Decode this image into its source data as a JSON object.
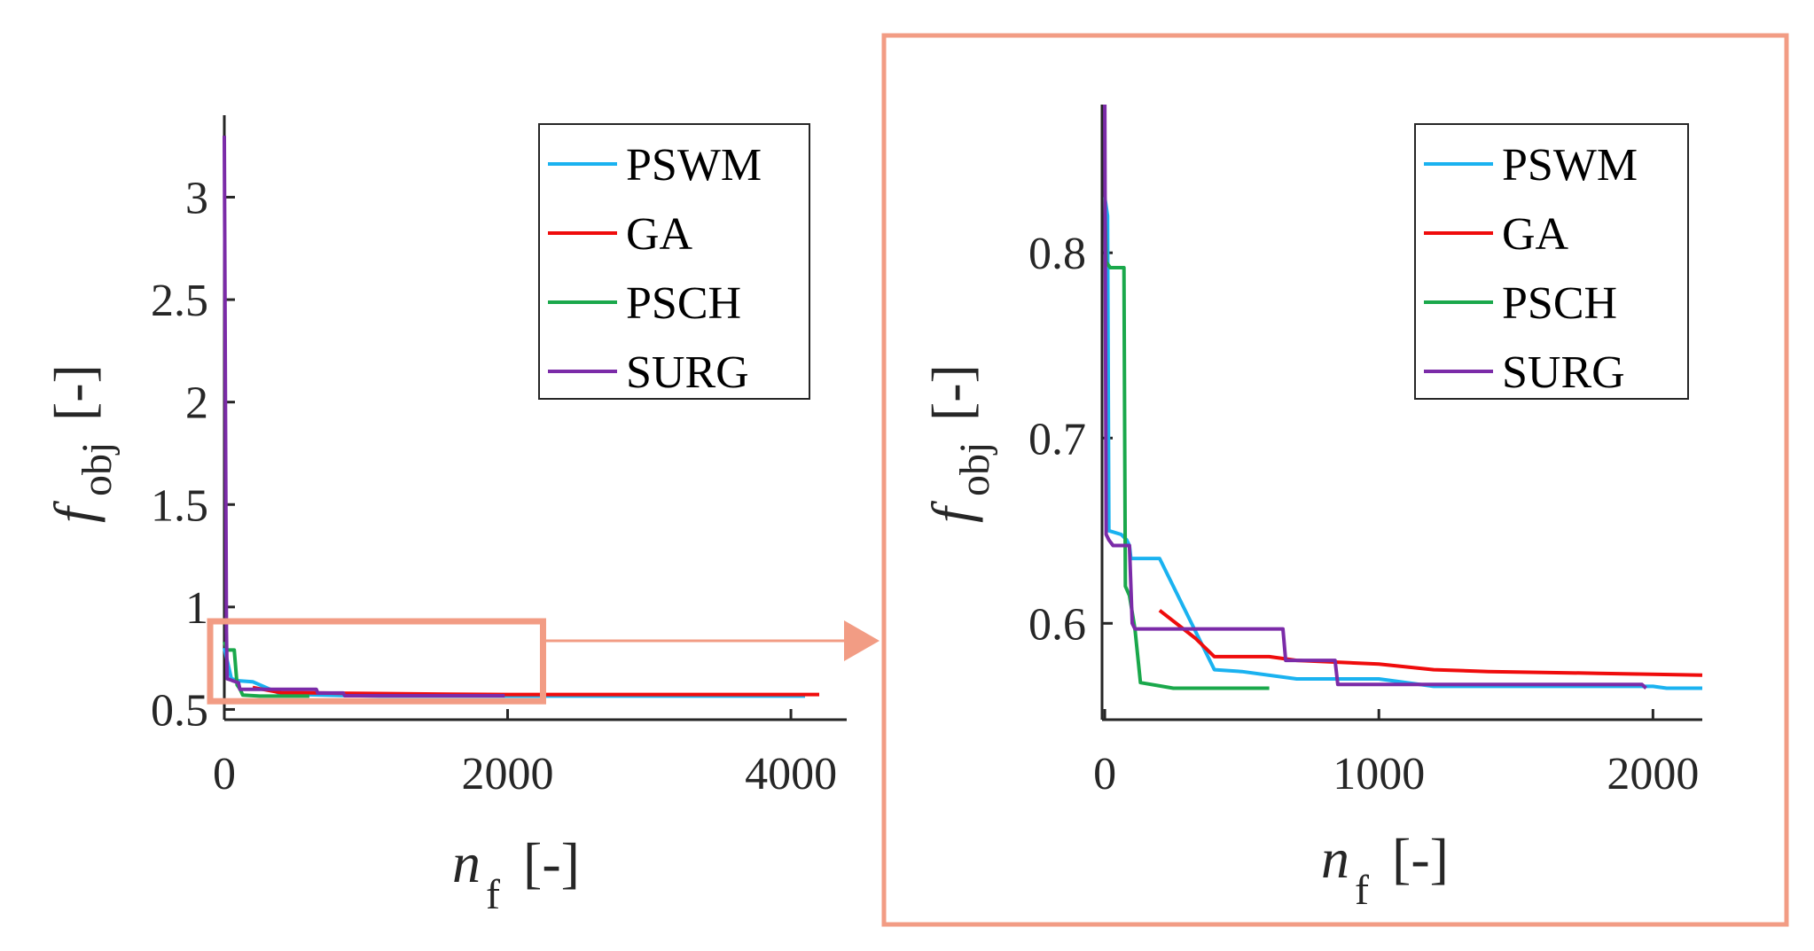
{
  "chart_data": [
    {
      "type": "line",
      "xlim": [
        0,
        4300
      ],
      "ylim": [
        0.45,
        3.4
      ],
      "xticks": [
        "0",
        "2000",
        "4000"
      ],
      "xtick_values": [
        0,
        2000,
        4000
      ],
      "yticks": [
        "0.5",
        "1",
        "1.5",
        "2",
        "2.5",
        "3"
      ],
      "ytick_values": [
        0.5,
        1,
        1.5,
        2,
        2.5,
        3
      ],
      "xlabel": {
        "symbol": "n",
        "sub": "f",
        "unit": "[-]"
      },
      "ylabel": {
        "symbol": "f",
        "sub": "obj",
        "unit": "[-]"
      },
      "legend": [
        "PSWM",
        "GA",
        "PSCH",
        "SURG"
      ],
      "zoom_region": {
        "x": [
          -100,
          2250
        ],
        "y": [
          0.54,
          0.93
        ]
      },
      "series": [
        {
          "name": "PSWM",
          "color": "#1ab2f0",
          "x": [
            0,
            50,
            100,
            200,
            400,
            700,
            1100,
            1200,
            2000,
            4100
          ],
          "y": [
            0.8,
            0.65,
            0.64,
            0.635,
            0.575,
            0.57,
            0.565,
            0.565,
            0.565,
            0.565
          ]
        },
        {
          "name": "GA",
          "color": "#ef0c0c",
          "x": [
            200,
            400,
            700,
            1000,
            1500,
            2000,
            3000,
            4200
          ],
          "y": [
            0.607,
            0.582,
            0.58,
            0.578,
            0.575,
            0.573,
            0.573,
            0.573
          ]
        },
        {
          "name": "PSCH",
          "color": "#1aa84b",
          "x": [
            0,
            20,
            70,
            90,
            110,
            130,
            250,
            600
          ],
          "y": [
            0.83,
            0.79,
            0.79,
            0.62,
            0.6,
            0.57,
            0.565,
            0.565
          ]
        },
        {
          "name": "SURG",
          "color": "#7b2ba8",
          "x": [
            0,
            15,
            20,
            40,
            60,
            100,
            110,
            650,
            660,
            840,
            850,
            1960,
            1980
          ],
          "y": [
            3.3,
            0.88,
            0.65,
            0.645,
            0.64,
            0.63,
            0.598,
            0.598,
            0.58,
            0.58,
            0.567,
            0.567,
            0.567
          ]
        }
      ]
    },
    {
      "type": "line",
      "xlim": [
        -10,
        2180
      ],
      "ylim": [
        0.548,
        0.88
      ],
      "xticks": [
        "0",
        "1000",
        "2000"
      ],
      "xtick_values": [
        0,
        1000,
        2000
      ],
      "yticks": [
        "0.6",
        "0.7",
        "0.8"
      ],
      "ytick_values": [
        0.6,
        0.7,
        0.8
      ],
      "xlabel": {
        "symbol": "n",
        "sub": "f",
        "unit": "[-]"
      },
      "ylabel": {
        "symbol": "f",
        "sub": "obj",
        "unit": "[-]"
      },
      "legend": [
        "PSWM",
        "GA",
        "PSCH",
        "SURG"
      ],
      "series": [
        {
          "name": "PSWM",
          "color": "#1ab2f0",
          "x": [
            0,
            10,
            15,
            60,
            80,
            90,
            95,
            100,
            180,
            200,
            400,
            500,
            700,
            1000,
            1200,
            1500,
            1900,
            2000,
            2050,
            2180
          ],
          "y": [
            0.83,
            0.82,
            0.65,
            0.648,
            0.645,
            0.642,
            0.635,
            0.635,
            0.635,
            0.635,
            0.575,
            0.574,
            0.57,
            0.57,
            0.566,
            0.566,
            0.566,
            0.566,
            0.565,
            0.565
          ]
        },
        {
          "name": "GA",
          "color": "#ef0c0c",
          "x": [
            200,
            330,
            400,
            600,
            700,
            1000,
            1200,
            1400,
            1800,
            2180
          ],
          "y": [
            0.607,
            0.592,
            0.582,
            0.582,
            0.58,
            0.578,
            0.575,
            0.574,
            0.573,
            0.572
          ]
        },
        {
          "name": "PSCH",
          "color": "#1aa84b",
          "x": [
            0,
            5,
            20,
            70,
            75,
            90,
            110,
            130,
            250,
            600
          ],
          "y": [
            0.83,
            0.795,
            0.792,
            0.792,
            0.62,
            0.615,
            0.597,
            0.568,
            0.565,
            0.565
          ]
        },
        {
          "name": "SURG",
          "color": "#7b2ba8",
          "x": [
            0,
            5,
            15,
            30,
            50,
            90,
            100,
            110,
            650,
            660,
            840,
            850,
            1960,
            1975
          ],
          "y": [
            0.88,
            0.648,
            0.645,
            0.642,
            0.642,
            0.642,
            0.6,
            0.597,
            0.597,
            0.58,
            0.58,
            0.567,
            0.567,
            0.565
          ]
        }
      ]
    }
  ]
}
